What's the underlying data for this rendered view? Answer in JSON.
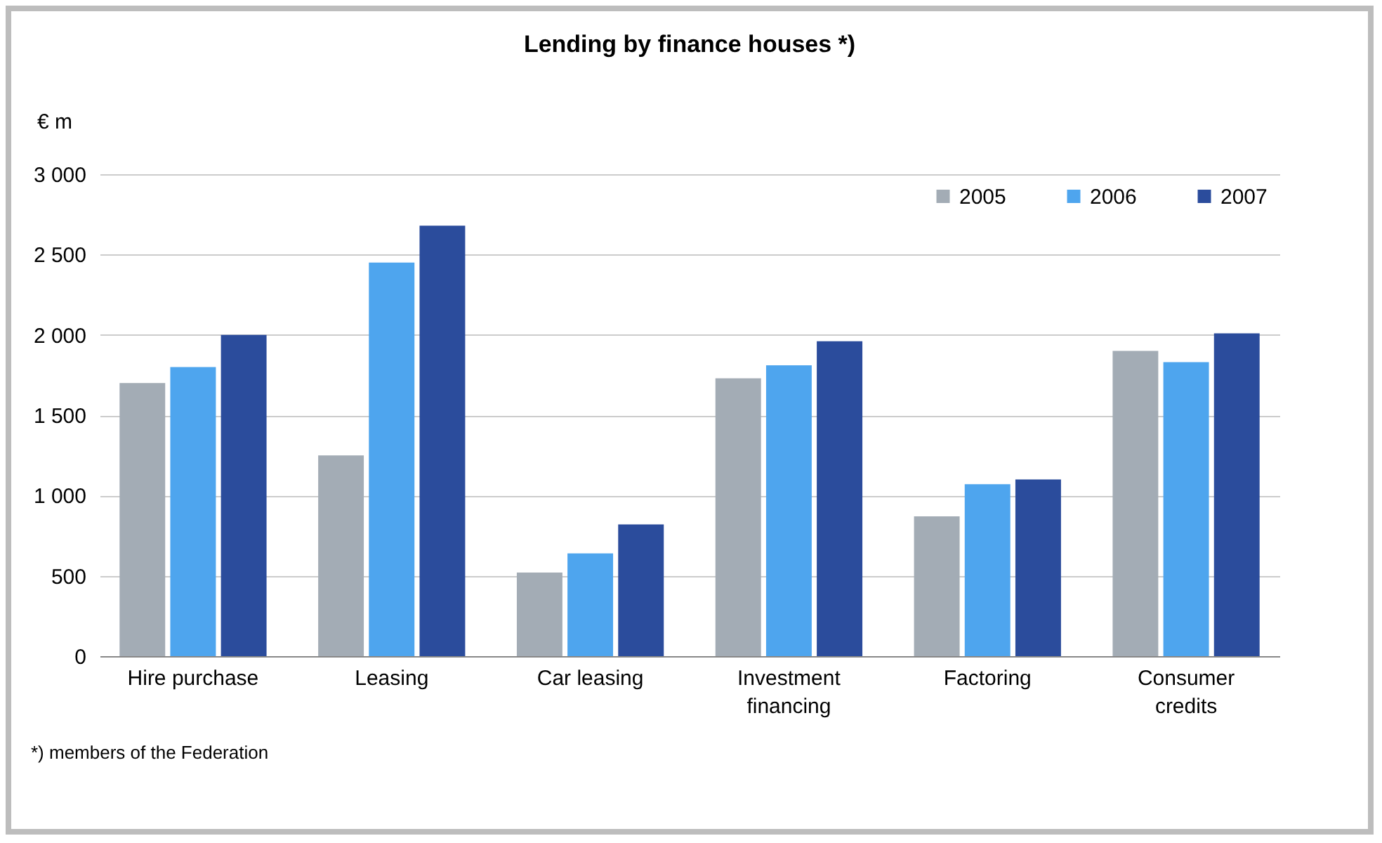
{
  "chart_data": {
    "type": "bar",
    "title": "Lending by finance houses *)",
    "ylabel": "€ m",
    "categories": [
      "Hire purchase",
      "Leasing",
      "Car leasing",
      "Investment financing",
      "Factoring",
      "Consumer credits"
    ],
    "series": [
      {
        "name": "2005",
        "color": "#a3acb5",
        "values": [
          1700,
          1250,
          520,
          1730,
          870,
          1900
        ]
      },
      {
        "name": "2006",
        "color": "#4ea5ee",
        "values": [
          1800,
          2450,
          640,
          1810,
          1070,
          1830
        ]
      },
      {
        "name": "2007",
        "color": "#2b4c9c",
        "values": [
          2000,
          2680,
          820,
          1960,
          1100,
          2010
        ]
      }
    ],
    "ylim": [
      0,
      3000
    ],
    "yticks": [
      0,
      500,
      {
        "value": 1000,
        "label": "1 000"
      },
      {
        "value": 1500,
        "label": "1 500"
      },
      {
        "value": 2000,
        "label": "2 000"
      },
      {
        "value": 2500,
        "label": "2 500"
      },
      {
        "value": 3000,
        "label": "3 000"
      }
    ],
    "grid": "y",
    "legend": "top right",
    "annotations": [
      "*) members of the Federation"
    ]
  }
}
